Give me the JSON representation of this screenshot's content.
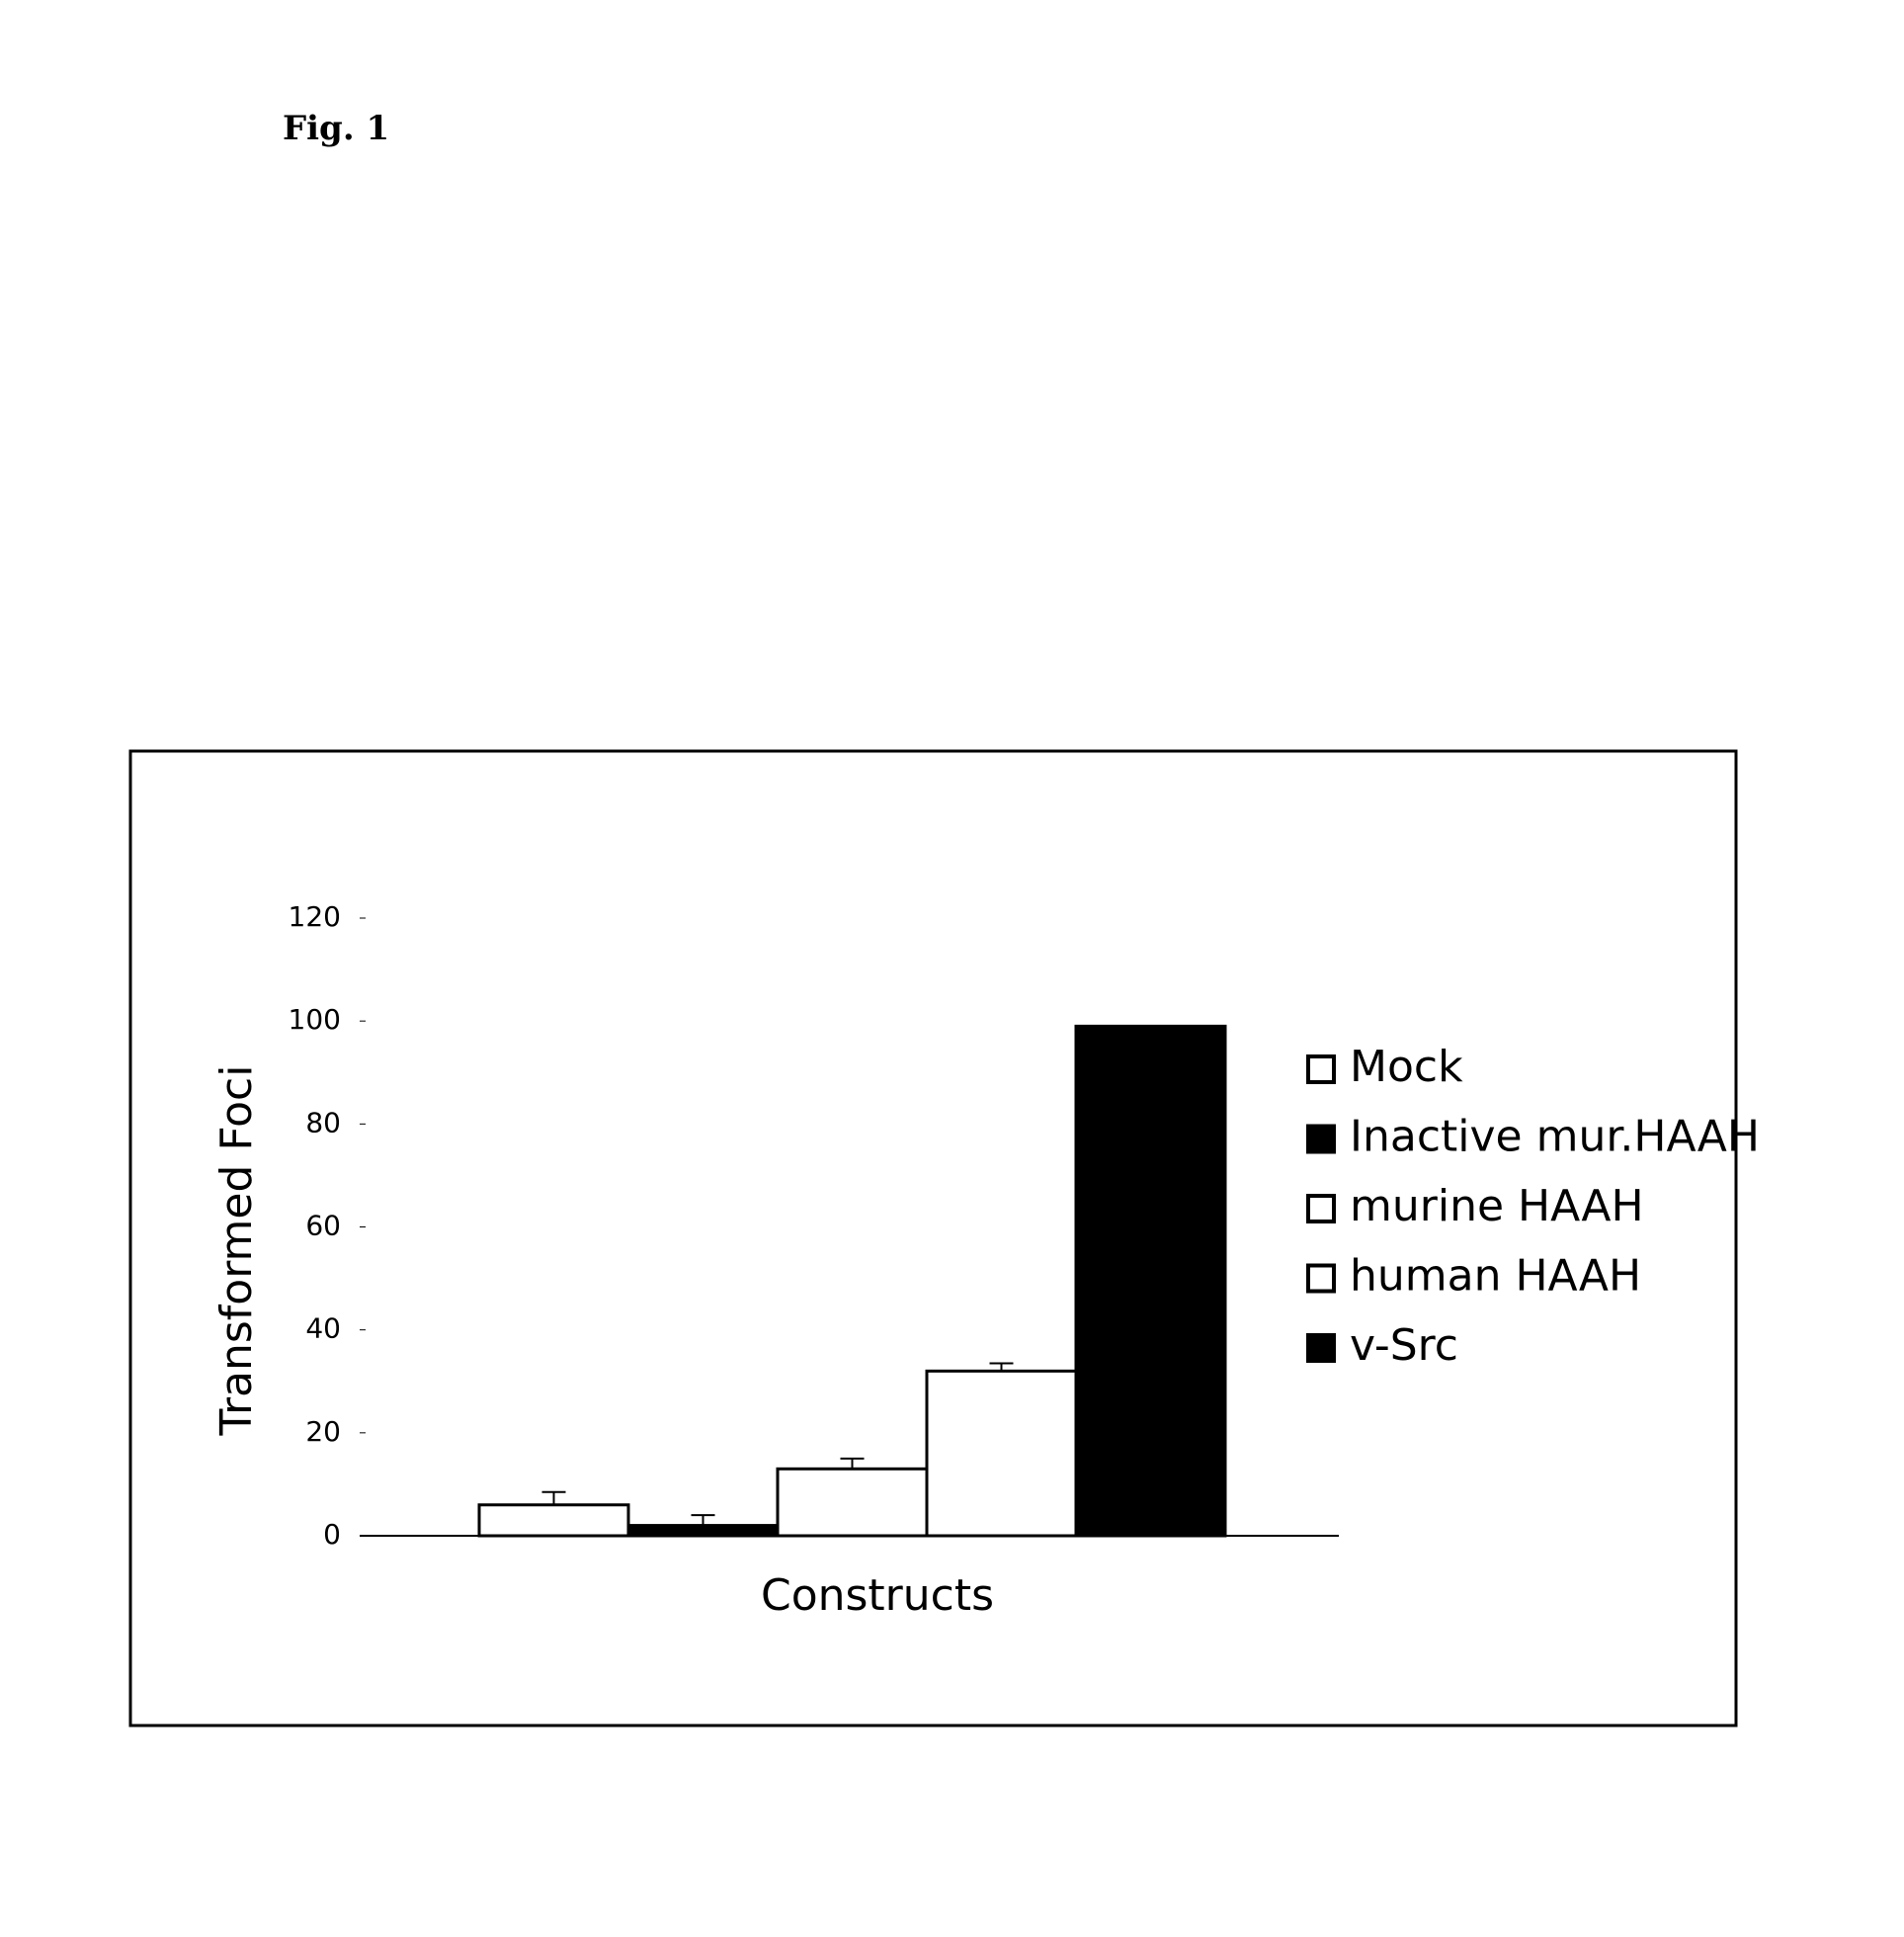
{
  "figure_label": "Fig. 1",
  "chart_data": {
    "type": "bar",
    "categories": [
      null
    ],
    "y_label": "Transformed Foci",
    "x_label": "Constructs",
    "ylim": [
      0,
      120
    ],
    "yticks": [
      0,
      20,
      40,
      60,
      80,
      100,
      120
    ],
    "series": [
      {
        "name": "Mock",
        "color": "#ffffff",
        "values": [
          6
        ],
        "errors": [
          2.5
        ]
      },
      {
        "name": "Inactive mur.HAAH",
        "color": "#000000",
        "values": [
          2
        ],
        "errors": [
          2
        ]
      },
      {
        "name": "murine HAAH",
        "color": "#ffffff",
        "values": [
          13
        ],
        "errors": [
          2
        ]
      },
      {
        "name": "human HAAH",
        "color": "#ffffff",
        "values": [
          32
        ],
        "errors": [
          1.5
        ]
      },
      {
        "name": "v-Src",
        "color": "#000000",
        "values": [
          99
        ],
        "errors": [
          0
        ]
      }
    ]
  }
}
